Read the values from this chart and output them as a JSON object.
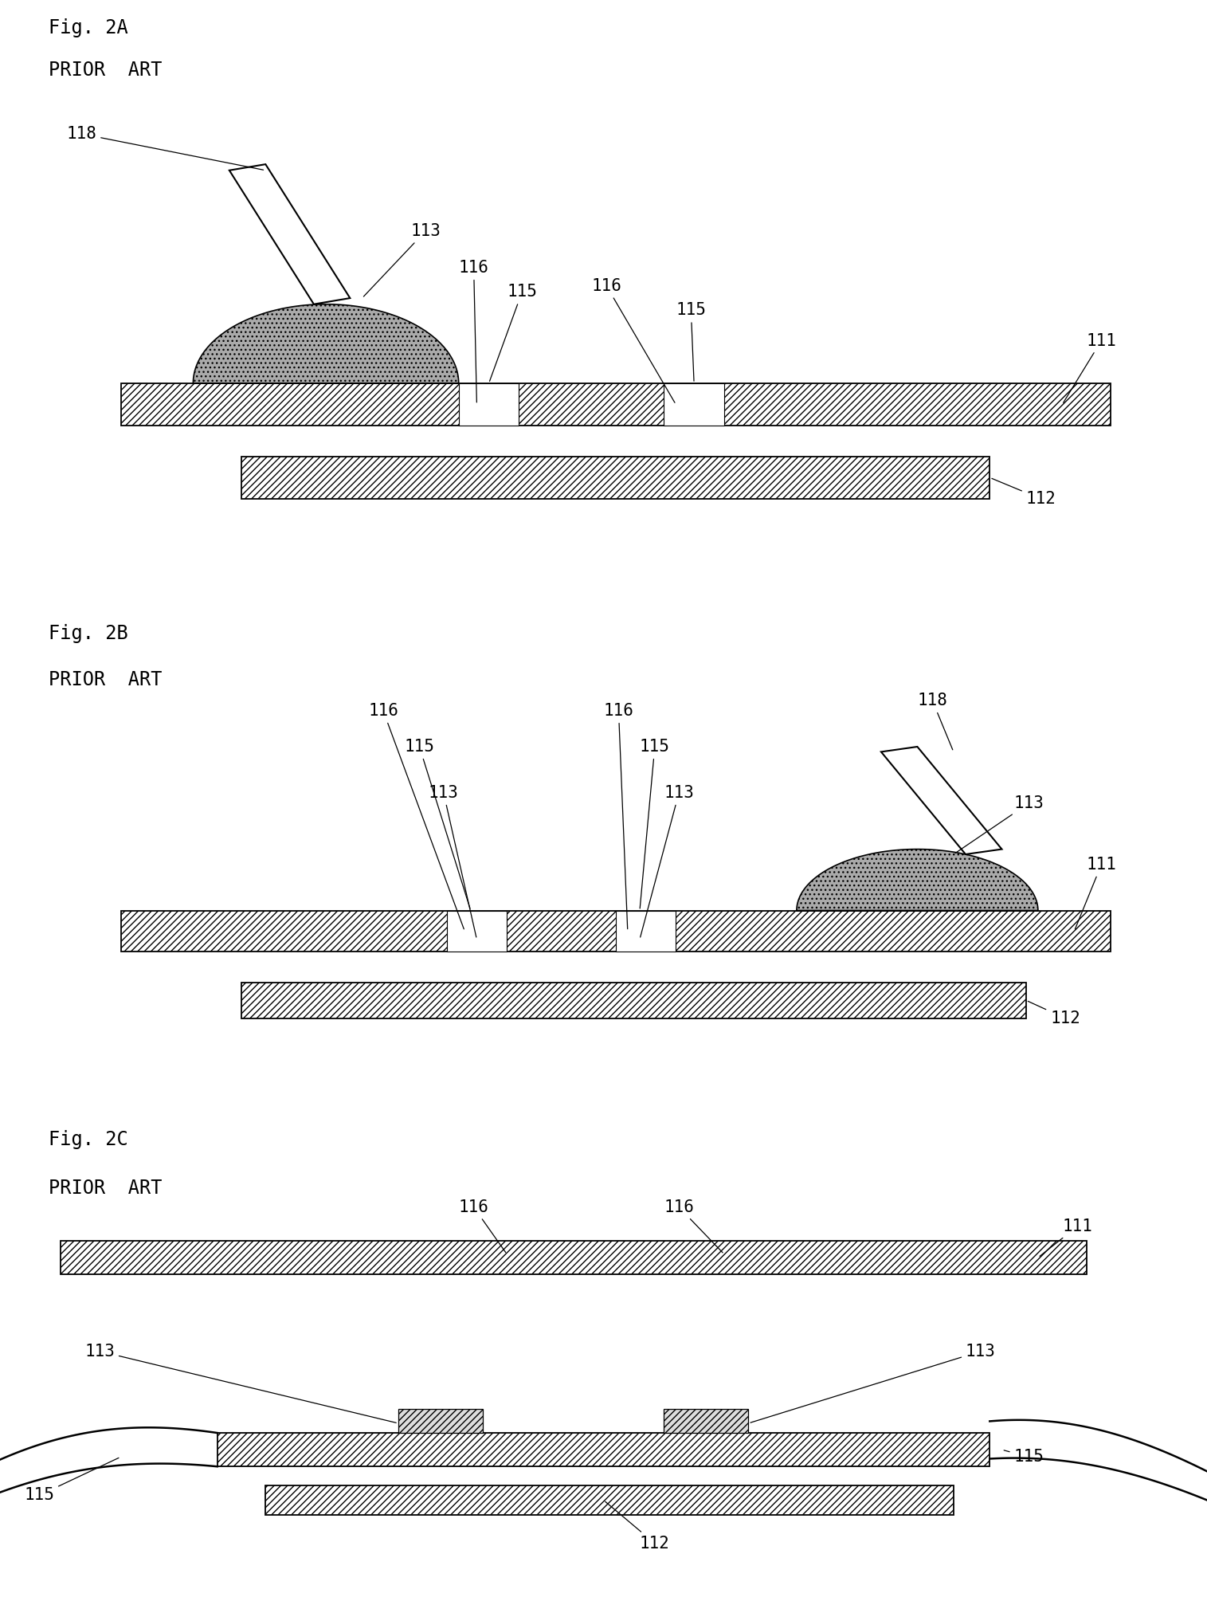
{
  "bg_color": "#ffffff",
  "fig_width": 15.15,
  "fig_height": 20.09,
  "fig2a_title": "Fig. 2A",
  "fig2b_title": "Fig. 2B",
  "fig2c_title": "Fig. 2C",
  "prior_art": "PRIOR  ART",
  "font_size_title": 17,
  "font_size_label": 15,
  "hatch_pattern": "////"
}
